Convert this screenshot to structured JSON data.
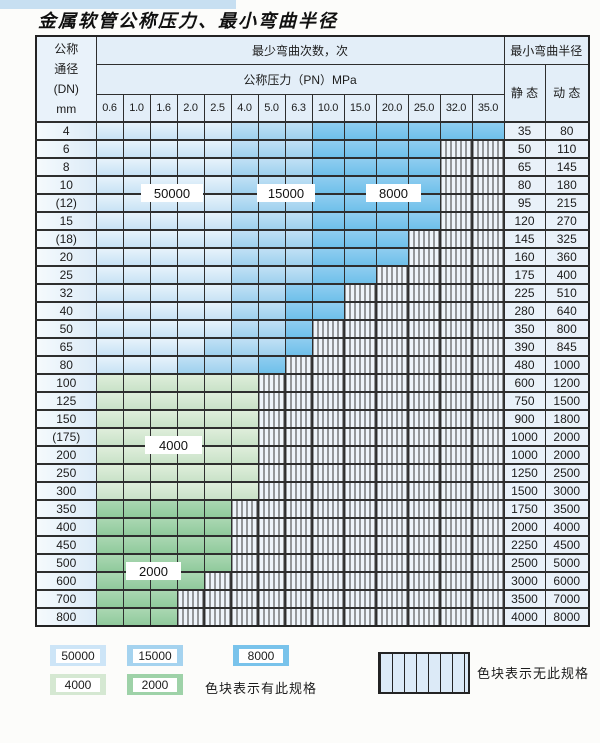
{
  "title": "金属软管公称压力、最小弯曲半径",
  "table": {
    "corner": {
      "lines": [
        "公称",
        "通径",
        "(DN)",
        "mm"
      ]
    },
    "bend_cycles_header": "最少弯曲次数，次",
    "pressure_header": "公称压力（PN）MPa",
    "radius_header": "最小弯曲半径",
    "static_label": "静 态",
    "dynamic_label": "动 态",
    "pressure_columns": [
      "0.6",
      "1.0",
      "1.6",
      "2.0",
      "2.5",
      "4.0",
      "5.0",
      "6.3",
      "10.0",
      "15.0",
      "20.0",
      "25.0",
      "32.0",
      "35.0"
    ],
    "cell_legend_meaning": {
      "b1": "50000",
      "b2": "15000",
      "b3": "8000",
      "g1": "4000",
      "g2": "2000",
      "x": "无此规格"
    },
    "rows": [
      {
        "dn": "4",
        "static": "35",
        "dynamic": "80",
        "cells": [
          "b1",
          "b1",
          "b1",
          "b1",
          "b1",
          "b2",
          "b2",
          "b2",
          "b3",
          "b3",
          "b3",
          "b3",
          "b3",
          "b3"
        ]
      },
      {
        "dn": "6",
        "static": "50",
        "dynamic": "110",
        "cells": [
          "b1",
          "b1",
          "b1",
          "b1",
          "b1",
          "b2",
          "b2",
          "b2",
          "b3",
          "b3",
          "b3",
          "b3",
          "x",
          "x"
        ]
      },
      {
        "dn": "8",
        "static": "65",
        "dynamic": "145",
        "cells": [
          "b1",
          "b1",
          "b1",
          "b1",
          "b1",
          "b2",
          "b2",
          "b2",
          "b3",
          "b3",
          "b3",
          "b3",
          "x",
          "x"
        ]
      },
      {
        "dn": "10",
        "static": "80",
        "dynamic": "180",
        "cells": [
          "b1",
          "b1",
          "b1",
          "b1",
          "b1",
          "b2",
          "b2",
          "b2",
          "b3",
          "b3",
          "b3",
          "b3",
          "x",
          "x"
        ]
      },
      {
        "dn": "(12)",
        "static": "95",
        "dynamic": "215",
        "cells": [
          "b1",
          "b1",
          "b1",
          "b1",
          "b1",
          "b2",
          "b2",
          "b2",
          "b3",
          "b3",
          "b3",
          "b3",
          "x",
          "x"
        ]
      },
      {
        "dn": "15",
        "static": "120",
        "dynamic": "270",
        "cells": [
          "b1",
          "b1",
          "b1",
          "b1",
          "b1",
          "b2",
          "b2",
          "b2",
          "b3",
          "b3",
          "b3",
          "b3",
          "x",
          "x"
        ]
      },
      {
        "dn": "(18)",
        "static": "145",
        "dynamic": "325",
        "cells": [
          "b1",
          "b1",
          "b1",
          "b1",
          "b1",
          "b2",
          "b2",
          "b2",
          "b3",
          "b3",
          "b3",
          "x",
          "x",
          "x"
        ]
      },
      {
        "dn": "20",
        "static": "160",
        "dynamic": "360",
        "cells": [
          "b1",
          "b1",
          "b1",
          "b1",
          "b1",
          "b2",
          "b2",
          "b2",
          "b3",
          "b3",
          "b3",
          "x",
          "x",
          "x"
        ]
      },
      {
        "dn": "25",
        "static": "175",
        "dynamic": "400",
        "cells": [
          "b1",
          "b1",
          "b1",
          "b1",
          "b1",
          "b2",
          "b2",
          "b2",
          "b3",
          "b3",
          "x",
          "x",
          "x",
          "x"
        ]
      },
      {
        "dn": "32",
        "static": "225",
        "dynamic": "510",
        "cells": [
          "b1",
          "b1",
          "b1",
          "b1",
          "b1",
          "b2",
          "b2",
          "b3",
          "b3",
          "x",
          "x",
          "x",
          "x",
          "x"
        ]
      },
      {
        "dn": "40",
        "static": "280",
        "dynamic": "640",
        "cells": [
          "b1",
          "b1",
          "b1",
          "b1",
          "b1",
          "b2",
          "b2",
          "b3",
          "b3",
          "x",
          "x",
          "x",
          "x",
          "x"
        ]
      },
      {
        "dn": "50",
        "static": "350",
        "dynamic": "800",
        "cells": [
          "b1",
          "b1",
          "b1",
          "b1",
          "b1",
          "b2",
          "b2",
          "b3",
          "x",
          "x",
          "x",
          "x",
          "x",
          "x"
        ]
      },
      {
        "dn": "65",
        "static": "390",
        "dynamic": "845",
        "cells": [
          "b1",
          "b1",
          "b1",
          "b1",
          "b2",
          "b2",
          "b2",
          "b3",
          "x",
          "x",
          "x",
          "x",
          "x",
          "x"
        ]
      },
      {
        "dn": "80",
        "static": "480",
        "dynamic": "1000",
        "cells": [
          "b1",
          "b1",
          "b1",
          "b2",
          "b2",
          "b2",
          "b3",
          "x",
          "x",
          "x",
          "x",
          "x",
          "x",
          "x"
        ]
      },
      {
        "dn": "100",
        "static": "600",
        "dynamic": "1200",
        "cells": [
          "g1",
          "g1",
          "g1",
          "g1",
          "g1",
          "g1",
          "x",
          "x",
          "x",
          "x",
          "x",
          "x",
          "x",
          "x"
        ]
      },
      {
        "dn": "125",
        "static": "750",
        "dynamic": "1500",
        "cells": [
          "g1",
          "g1",
          "g1",
          "g1",
          "g1",
          "g1",
          "x",
          "x",
          "x",
          "x",
          "x",
          "x",
          "x",
          "x"
        ]
      },
      {
        "dn": "150",
        "static": "900",
        "dynamic": "1800",
        "cells": [
          "g1",
          "g1",
          "g1",
          "g1",
          "g1",
          "g1",
          "x",
          "x",
          "x",
          "x",
          "x",
          "x",
          "x",
          "x"
        ]
      },
      {
        "dn": "(175)",
        "static": "1000",
        "dynamic": "2000",
        "cells": [
          "g1",
          "g1",
          "g1",
          "g1",
          "g1",
          "g1",
          "x",
          "x",
          "x",
          "x",
          "x",
          "x",
          "x",
          "x"
        ]
      },
      {
        "dn": "200",
        "static": "1000",
        "dynamic": "2000",
        "cells": [
          "g1",
          "g1",
          "g1",
          "g1",
          "g1",
          "g1",
          "x",
          "x",
          "x",
          "x",
          "x",
          "x",
          "x",
          "x"
        ]
      },
      {
        "dn": "250",
        "static": "1250",
        "dynamic": "2500",
        "cells": [
          "g1",
          "g1",
          "g1",
          "g1",
          "g1",
          "g1",
          "x",
          "x",
          "x",
          "x",
          "x",
          "x",
          "x",
          "x"
        ]
      },
      {
        "dn": "300",
        "static": "1500",
        "dynamic": "3000",
        "cells": [
          "g1",
          "g1",
          "g1",
          "g1",
          "g1",
          "g1",
          "x",
          "x",
          "x",
          "x",
          "x",
          "x",
          "x",
          "x"
        ]
      },
      {
        "dn": "350",
        "static": "1750",
        "dynamic": "3500",
        "cells": [
          "g2",
          "g2",
          "g2",
          "g2",
          "g2",
          "x",
          "x",
          "x",
          "x",
          "x",
          "x",
          "x",
          "x",
          "x"
        ]
      },
      {
        "dn": "400",
        "static": "2000",
        "dynamic": "4000",
        "cells": [
          "g2",
          "g2",
          "g2",
          "g2",
          "g2",
          "x",
          "x",
          "x",
          "x",
          "x",
          "x",
          "x",
          "x",
          "x"
        ]
      },
      {
        "dn": "450",
        "static": "2250",
        "dynamic": "4500",
        "cells": [
          "g2",
          "g2",
          "g2",
          "g2",
          "g2",
          "x",
          "x",
          "x",
          "x",
          "x",
          "x",
          "x",
          "x",
          "x"
        ]
      },
      {
        "dn": "500",
        "static": "2500",
        "dynamic": "5000",
        "cells": [
          "g2",
          "g2",
          "g2",
          "g2",
          "g2",
          "x",
          "x",
          "x",
          "x",
          "x",
          "x",
          "x",
          "x",
          "x"
        ]
      },
      {
        "dn": "600",
        "static": "3000",
        "dynamic": "6000",
        "cells": [
          "g2",
          "g2",
          "g2",
          "g2",
          "x",
          "x",
          "x",
          "x",
          "x",
          "x",
          "x",
          "x",
          "x",
          "x"
        ]
      },
      {
        "dn": "700",
        "static": "3500",
        "dynamic": "7000",
        "cells": [
          "g2",
          "g2",
          "g2",
          "x",
          "x",
          "x",
          "x",
          "x",
          "x",
          "x",
          "x",
          "x",
          "x",
          "x"
        ]
      },
      {
        "dn": "800",
        "static": "4000",
        "dynamic": "8000",
        "cells": [
          "g2",
          "g2",
          "g2",
          "x",
          "x",
          "x",
          "x",
          "x",
          "x",
          "x",
          "x",
          "x",
          "x",
          "x"
        ]
      }
    ]
  },
  "region_labels": {
    "b1": "50000",
    "b2": "15000",
    "b3": "8000",
    "g1": "4000",
    "g2": "2000"
  },
  "legend": {
    "items": [
      {
        "label": "50000",
        "band": "b1",
        "row": 1
      },
      {
        "label": "15000",
        "band": "b2",
        "row": 1
      },
      {
        "label": "8000",
        "band": "b3",
        "row": 1
      },
      {
        "label": "4000",
        "band": "g1",
        "row": 2
      },
      {
        "label": "2000",
        "band": "g2",
        "row": 2
      }
    ],
    "has_spec_note": "色块表示有此规格",
    "no_spec_note": "色块表示无此规格"
  },
  "colors": {
    "cycles_50000": "#cde5f7",
    "cycles_15000": "#a5d3ef",
    "cycles_8000": "#79c3eb",
    "cycles_4000": "#d5e8d2",
    "cycles_2000": "#9ed2a8",
    "no_spec_fill": "#eef4fa",
    "grid_line": "#2e2e2e"
  }
}
